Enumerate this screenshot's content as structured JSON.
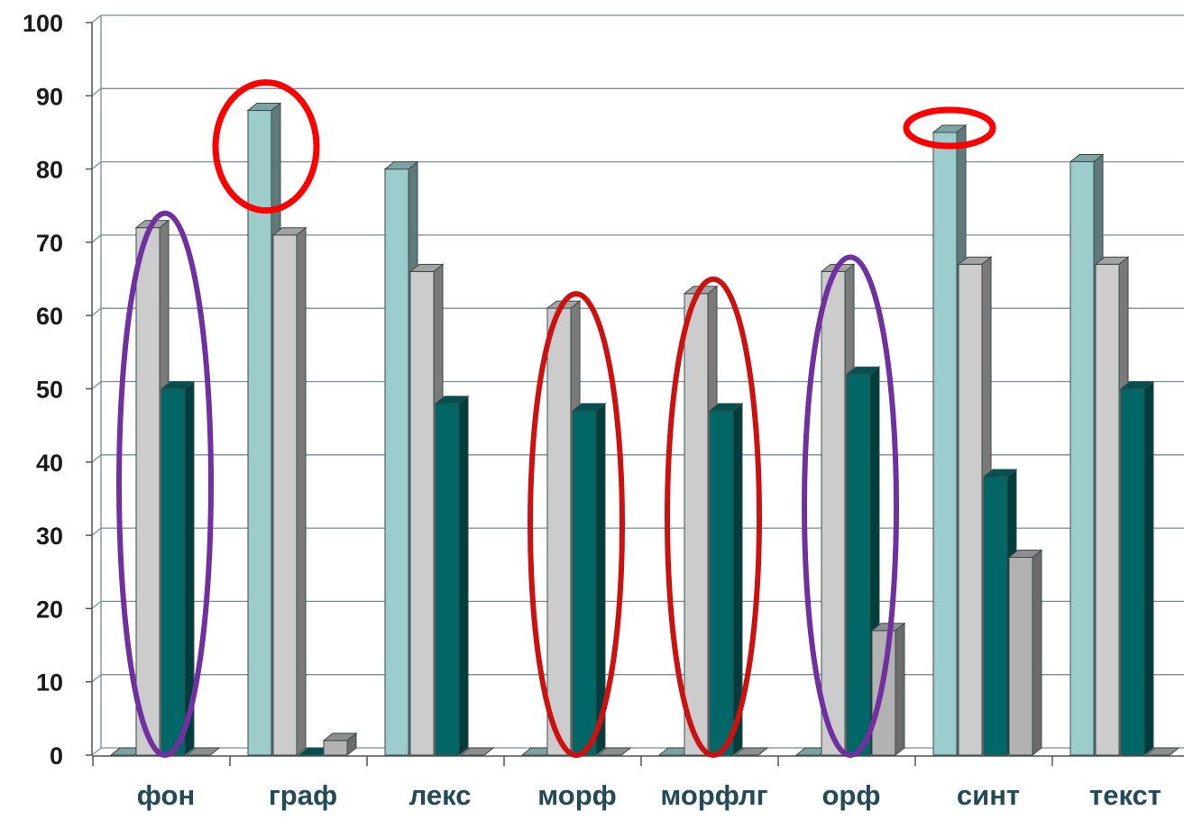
{
  "chart_data": {
    "type": "bar",
    "title": "",
    "xlabel": "",
    "ylabel": "",
    "ylim": [
      0,
      100
    ],
    "yticks": [
      0,
      10,
      20,
      30,
      40,
      50,
      60,
      70,
      80,
      90,
      100
    ],
    "grid": true,
    "style": "3d-clustered-columns",
    "categories": [
      "фон",
      "граф",
      "лекс",
      "морф",
      "морфлг",
      "орф",
      "синт",
      "текст"
    ],
    "series": [
      {
        "color": "#9ccccc",
        "values": [
          0,
          88,
          80,
          0,
          0,
          0,
          85,
          81
        ]
      },
      {
        "color": "#cccccc",
        "values": [
          72,
          71,
          66,
          61,
          63,
          66,
          67,
          67
        ]
      },
      {
        "color": "#006666",
        "values": [
          50,
          0,
          48,
          47,
          47,
          52,
          38,
          50
        ]
      },
      {
        "color": "#b2b2b2",
        "values": [
          0,
          2,
          0,
          0,
          0,
          17,
          27,
          0
        ]
      }
    ],
    "annotations": [
      {
        "shape": "ellipse",
        "color": "#7030a0",
        "category": "фон",
        "covers_series": [
          1,
          2
        ]
      },
      {
        "shape": "ellipse",
        "color": "#ff0000",
        "category": "граф",
        "covers_series": [
          0
        ]
      },
      {
        "shape": "ellipse",
        "color": "#cc1111",
        "category": "морф",
        "covers_series": [
          1,
          2
        ]
      },
      {
        "shape": "ellipse",
        "color": "#cc1111",
        "category": "морфлг",
        "covers_series": [
          1,
          2
        ]
      },
      {
        "shape": "ellipse",
        "color": "#7030a0",
        "category": "орф",
        "covers_series": [
          1,
          2
        ]
      },
      {
        "shape": "ellipse",
        "color": "#ff0000",
        "category": "синт",
        "covers_series": [
          0
        ],
        "top_only": true
      }
    ]
  }
}
